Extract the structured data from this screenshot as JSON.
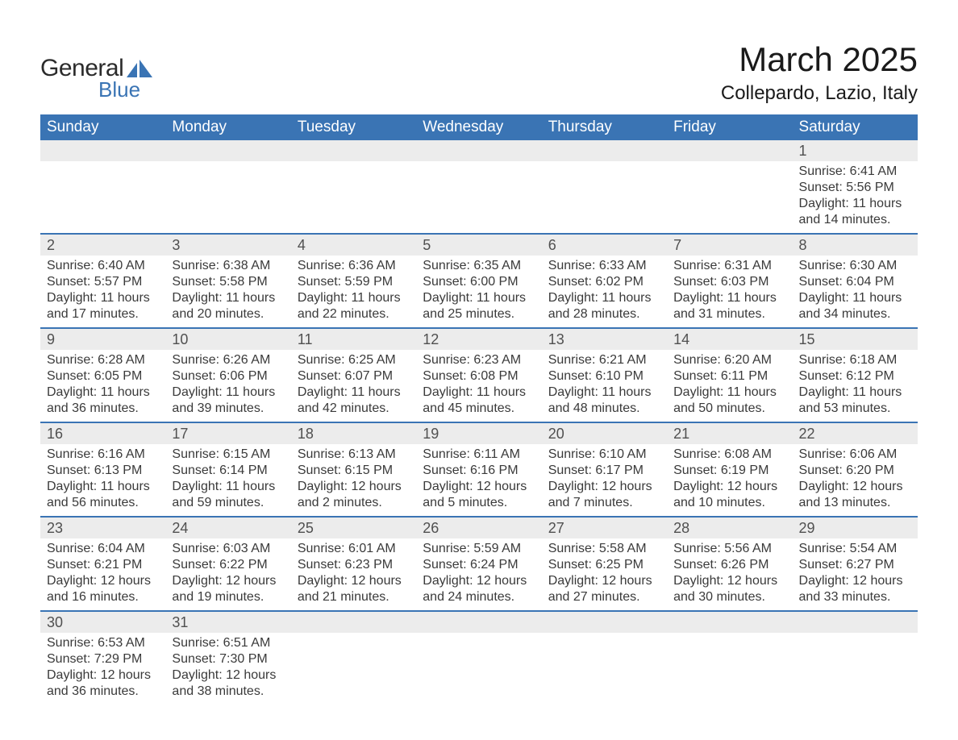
{
  "logo": {
    "text_general": "General",
    "text_blue": "Blue"
  },
  "title": "March 2025",
  "location": "Collepardo, Lazio, Italy",
  "colors": {
    "header_bg": "#3a74b4",
    "header_text": "#ffffff",
    "daynum_bg": "#ececec",
    "row_border": "#3a74b4",
    "body_text": "#3a3a3a",
    "title_text": "#1a1a1a",
    "logo_blue": "#3a74b4",
    "logo_dark": "#2b2b2b",
    "background": "#ffffff"
  },
  "fonts": {
    "family": "Arial",
    "title_size_pt": 32,
    "location_size_pt": 18,
    "weekday_size_pt": 14,
    "daynum_size_pt": 14,
    "cell_size_pt": 12
  },
  "weekdays": [
    "Sunday",
    "Monday",
    "Tuesday",
    "Wednesday",
    "Thursday",
    "Friday",
    "Saturday"
  ],
  "weeks": [
    [
      null,
      null,
      null,
      null,
      null,
      null,
      {
        "n": "1",
        "sr": "Sunrise: 6:41 AM",
        "ss": "Sunset: 5:56 PM",
        "d1": "Daylight: 11 hours",
        "d2": "and 14 minutes."
      }
    ],
    [
      {
        "n": "2",
        "sr": "Sunrise: 6:40 AM",
        "ss": "Sunset: 5:57 PM",
        "d1": "Daylight: 11 hours",
        "d2": "and 17 minutes."
      },
      {
        "n": "3",
        "sr": "Sunrise: 6:38 AM",
        "ss": "Sunset: 5:58 PM",
        "d1": "Daylight: 11 hours",
        "d2": "and 20 minutes."
      },
      {
        "n": "4",
        "sr": "Sunrise: 6:36 AM",
        "ss": "Sunset: 5:59 PM",
        "d1": "Daylight: 11 hours",
        "d2": "and 22 minutes."
      },
      {
        "n": "5",
        "sr": "Sunrise: 6:35 AM",
        "ss": "Sunset: 6:00 PM",
        "d1": "Daylight: 11 hours",
        "d2": "and 25 minutes."
      },
      {
        "n": "6",
        "sr": "Sunrise: 6:33 AM",
        "ss": "Sunset: 6:02 PM",
        "d1": "Daylight: 11 hours",
        "d2": "and 28 minutes."
      },
      {
        "n": "7",
        "sr": "Sunrise: 6:31 AM",
        "ss": "Sunset: 6:03 PM",
        "d1": "Daylight: 11 hours",
        "d2": "and 31 minutes."
      },
      {
        "n": "8",
        "sr": "Sunrise: 6:30 AM",
        "ss": "Sunset: 6:04 PM",
        "d1": "Daylight: 11 hours",
        "d2": "and 34 minutes."
      }
    ],
    [
      {
        "n": "9",
        "sr": "Sunrise: 6:28 AM",
        "ss": "Sunset: 6:05 PM",
        "d1": "Daylight: 11 hours",
        "d2": "and 36 minutes."
      },
      {
        "n": "10",
        "sr": "Sunrise: 6:26 AM",
        "ss": "Sunset: 6:06 PM",
        "d1": "Daylight: 11 hours",
        "d2": "and 39 minutes."
      },
      {
        "n": "11",
        "sr": "Sunrise: 6:25 AM",
        "ss": "Sunset: 6:07 PM",
        "d1": "Daylight: 11 hours",
        "d2": "and 42 minutes."
      },
      {
        "n": "12",
        "sr": "Sunrise: 6:23 AM",
        "ss": "Sunset: 6:08 PM",
        "d1": "Daylight: 11 hours",
        "d2": "and 45 minutes."
      },
      {
        "n": "13",
        "sr": "Sunrise: 6:21 AM",
        "ss": "Sunset: 6:10 PM",
        "d1": "Daylight: 11 hours",
        "d2": "and 48 minutes."
      },
      {
        "n": "14",
        "sr": "Sunrise: 6:20 AM",
        "ss": "Sunset: 6:11 PM",
        "d1": "Daylight: 11 hours",
        "d2": "and 50 minutes."
      },
      {
        "n": "15",
        "sr": "Sunrise: 6:18 AM",
        "ss": "Sunset: 6:12 PM",
        "d1": "Daylight: 11 hours",
        "d2": "and 53 minutes."
      }
    ],
    [
      {
        "n": "16",
        "sr": "Sunrise: 6:16 AM",
        "ss": "Sunset: 6:13 PM",
        "d1": "Daylight: 11 hours",
        "d2": "and 56 minutes."
      },
      {
        "n": "17",
        "sr": "Sunrise: 6:15 AM",
        "ss": "Sunset: 6:14 PM",
        "d1": "Daylight: 11 hours",
        "d2": "and 59 minutes."
      },
      {
        "n": "18",
        "sr": "Sunrise: 6:13 AM",
        "ss": "Sunset: 6:15 PM",
        "d1": "Daylight: 12 hours",
        "d2": "and 2 minutes."
      },
      {
        "n": "19",
        "sr": "Sunrise: 6:11 AM",
        "ss": "Sunset: 6:16 PM",
        "d1": "Daylight: 12 hours",
        "d2": "and 5 minutes."
      },
      {
        "n": "20",
        "sr": "Sunrise: 6:10 AM",
        "ss": "Sunset: 6:17 PM",
        "d1": "Daylight: 12 hours",
        "d2": "and 7 minutes."
      },
      {
        "n": "21",
        "sr": "Sunrise: 6:08 AM",
        "ss": "Sunset: 6:19 PM",
        "d1": "Daylight: 12 hours",
        "d2": "and 10 minutes."
      },
      {
        "n": "22",
        "sr": "Sunrise: 6:06 AM",
        "ss": "Sunset: 6:20 PM",
        "d1": "Daylight: 12 hours",
        "d2": "and 13 minutes."
      }
    ],
    [
      {
        "n": "23",
        "sr": "Sunrise: 6:04 AM",
        "ss": "Sunset: 6:21 PM",
        "d1": "Daylight: 12 hours",
        "d2": "and 16 minutes."
      },
      {
        "n": "24",
        "sr": "Sunrise: 6:03 AM",
        "ss": "Sunset: 6:22 PM",
        "d1": "Daylight: 12 hours",
        "d2": "and 19 minutes."
      },
      {
        "n": "25",
        "sr": "Sunrise: 6:01 AM",
        "ss": "Sunset: 6:23 PM",
        "d1": "Daylight: 12 hours",
        "d2": "and 21 minutes."
      },
      {
        "n": "26",
        "sr": "Sunrise: 5:59 AM",
        "ss": "Sunset: 6:24 PM",
        "d1": "Daylight: 12 hours",
        "d2": "and 24 minutes."
      },
      {
        "n": "27",
        "sr": "Sunrise: 5:58 AM",
        "ss": "Sunset: 6:25 PM",
        "d1": "Daylight: 12 hours",
        "d2": "and 27 minutes."
      },
      {
        "n": "28",
        "sr": "Sunrise: 5:56 AM",
        "ss": "Sunset: 6:26 PM",
        "d1": "Daylight: 12 hours",
        "d2": "and 30 minutes."
      },
      {
        "n": "29",
        "sr": "Sunrise: 5:54 AM",
        "ss": "Sunset: 6:27 PM",
        "d1": "Daylight: 12 hours",
        "d2": "and 33 minutes."
      }
    ],
    [
      {
        "n": "30",
        "sr": "Sunrise: 6:53 AM",
        "ss": "Sunset: 7:29 PM",
        "d1": "Daylight: 12 hours",
        "d2": "and 36 minutes."
      },
      {
        "n": "31",
        "sr": "Sunrise: 6:51 AM",
        "ss": "Sunset: 7:30 PM",
        "d1": "Daylight: 12 hours",
        "d2": "and 38 minutes."
      },
      null,
      null,
      null,
      null,
      null
    ]
  ]
}
